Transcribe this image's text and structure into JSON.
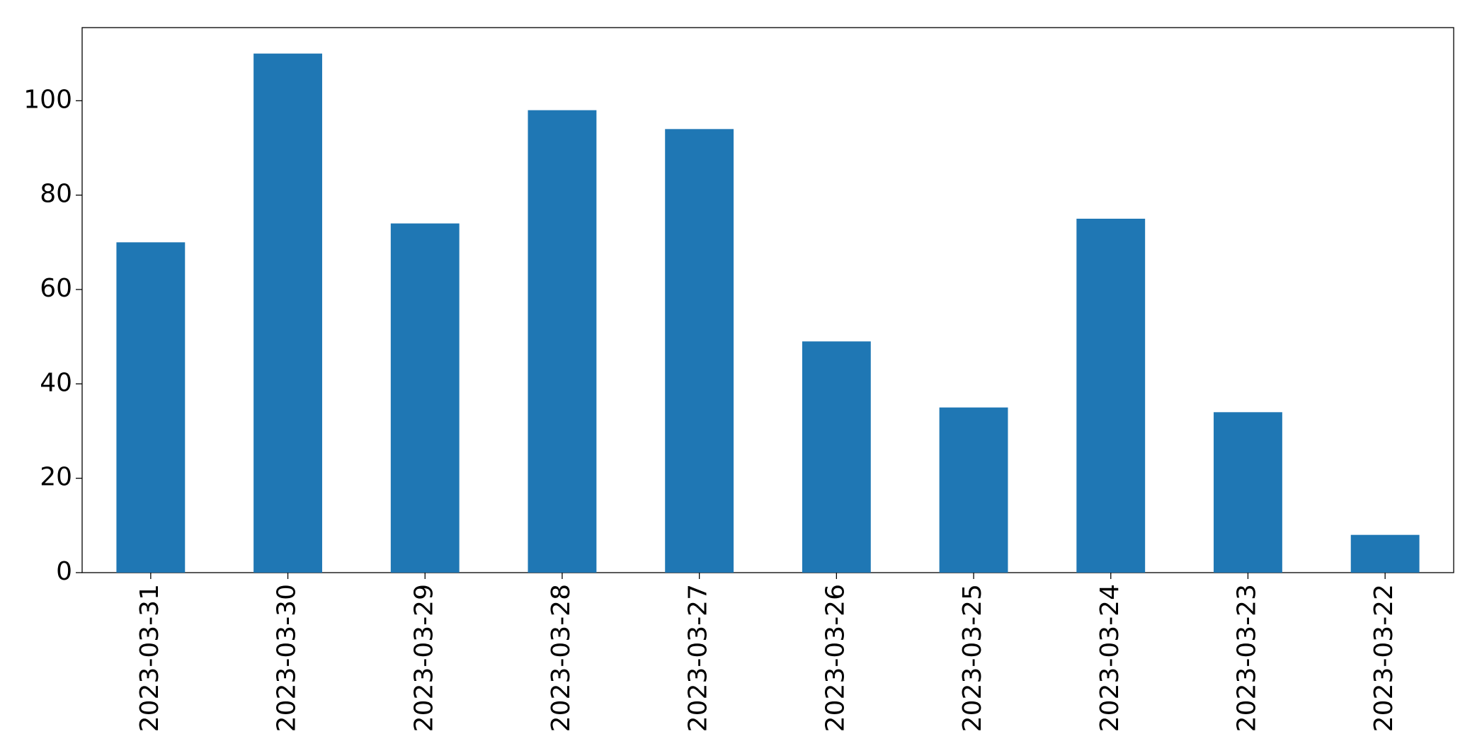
{
  "chart_data": {
    "type": "bar",
    "categories": [
      "2023-03-31",
      "2023-03-30",
      "2023-03-29",
      "2023-03-28",
      "2023-03-27",
      "2023-03-26",
      "2023-03-25",
      "2023-03-24",
      "2023-03-23",
      "2023-03-22"
    ],
    "values": [
      70,
      110,
      74,
      98,
      94,
      49,
      35,
      75,
      34,
      8
    ],
    "color": "#1f77b4",
    "ylim": [
      0,
      115.5
    ],
    "yticks": [
      0,
      20,
      40,
      60,
      80,
      100
    ],
    "grid": false
  }
}
